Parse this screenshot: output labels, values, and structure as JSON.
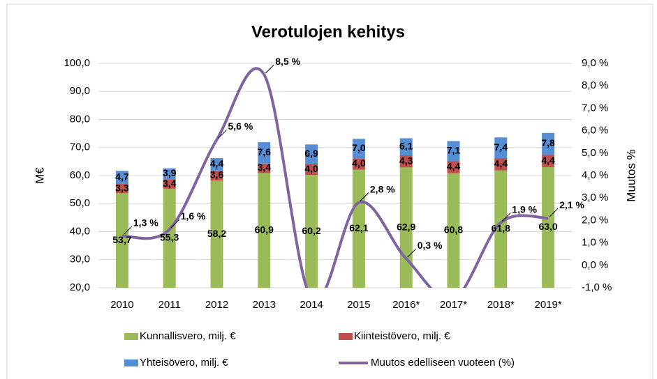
{
  "chart_data": {
    "type": "bar",
    "stacked": true,
    "title": "Verotulojen kehitys",
    "ylabel": "M€",
    "y2label": "Muutos %",
    "categories": [
      "2010",
      "2011",
      "2012",
      "2013",
      "2014",
      "2015",
      "2016*",
      "2017*",
      "2018*",
      "2019*"
    ],
    "ylim": [
      20,
      100
    ],
    "yticks": [
      {
        "value": 20,
        "label": "20,0"
      },
      {
        "value": 30,
        "label": "30,0"
      },
      {
        "value": 40,
        "label": "40,0"
      },
      {
        "value": 50,
        "label": "50,0"
      },
      {
        "value": 60,
        "label": "60,0"
      },
      {
        "value": 70,
        "label": "70,0"
      },
      {
        "value": 80,
        "label": "80,0"
      },
      {
        "value": 90,
        "label": "90,0"
      },
      {
        "value": 100,
        "label": "100,0"
      }
    ],
    "y2lim": [
      -1,
      9
    ],
    "y2ticks": [
      {
        "value": -1,
        "label": "-1,0 %"
      },
      {
        "value": 0,
        "label": "0,0 %"
      },
      {
        "value": 1,
        "label": "1,0 %"
      },
      {
        "value": 2,
        "label": "2,0 %"
      },
      {
        "value": 3,
        "label": "3,0 %"
      },
      {
        "value": 4,
        "label": "4,0 %"
      },
      {
        "value": 5,
        "label": "5,0 %"
      },
      {
        "value": 6,
        "label": "6,0 %"
      },
      {
        "value": 7,
        "label": "7,0 %"
      },
      {
        "value": 8,
        "label": "8,0 %"
      },
      {
        "value": 9,
        "label": "9,0 %"
      }
    ],
    "series": [
      {
        "name": "Kunnallisvero, milj. €",
        "color": "#9bbb59",
        "values": [
          53.7,
          55.3,
          58.2,
          60.9,
          60.2,
          62.1,
          62.9,
          60.8,
          61.8,
          63.0
        ],
        "value_labels": [
          "53,7",
          "55,3",
          "58,2",
          "60,9",
          "60,2",
          "62,1",
          "62,9",
          "60,8",
          "61,8",
          "63,0"
        ]
      },
      {
        "name": "Kiinteistövero, milj. €",
        "color": "#c0504d",
        "values": [
          3.3,
          3.4,
          3.6,
          3.4,
          4.0,
          4.0,
          4.3,
          4.4,
          4.4,
          4.4
        ],
        "value_labels": [
          "3,3",
          "3,4",
          "3,6",
          "3,4",
          "4,0",
          "4,0",
          "4,3",
          "4,4",
          "4,4",
          "4,4"
        ]
      },
      {
        "name": "Yhteisövero, milj. €",
        "color": "#558ed5",
        "values": [
          4.7,
          3.9,
          4.4,
          7.6,
          6.9,
          7.0,
          6.1,
          7.1,
          7.4,
          7.8
        ],
        "value_labels": [
          "4,7",
          "3,9",
          "4,4",
          "7,6",
          "6,9",
          "7,0",
          "6,1",
          "7,1",
          "7,4",
          "7,8"
        ]
      },
      {
        "name": "Muutos edelliseen vuoteen (%)",
        "color": "#8064a2",
        "type": "line",
        "axis": "y2",
        "smooth": true,
        "values": [
          1.3,
          1.6,
          5.6,
          8.5,
          -1.5,
          2.8,
          0.3,
          -1.5,
          1.9,
          2.1
        ],
        "value_labels": [
          "1,3 %",
          "1,6 %",
          "5,6 %",
          "8,5 %",
          null,
          "2,8 %",
          "0,3 %",
          null,
          "1,9 %",
          "2,1 %"
        ]
      }
    ]
  }
}
